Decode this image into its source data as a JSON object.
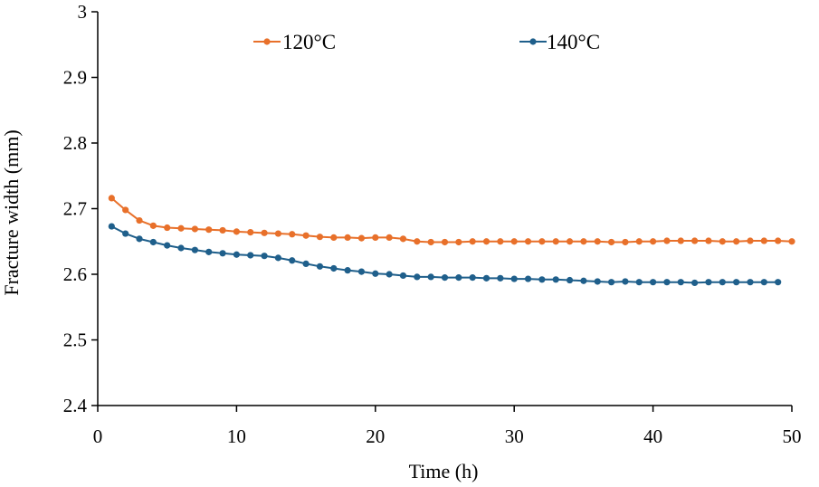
{
  "chart_data": {
    "type": "line",
    "title": "",
    "xlabel": "Time (h)",
    "ylabel": "Fracture width (mm)",
    "xlim": [
      0,
      50
    ],
    "ylim": [
      2.4,
      3
    ],
    "x_ticks": [
      0,
      10,
      20,
      30,
      40,
      50
    ],
    "y_ticks": [
      2.4,
      2.5,
      2.6,
      2.7,
      2.8,
      2.9,
      3
    ],
    "x_tick_labels": [
      "0",
      "10",
      "20",
      "30",
      "40",
      "50"
    ],
    "y_tick_labels": [
      "2.4",
      "2.5",
      "2.6",
      "2.7",
      "2.8",
      "2.9",
      "3"
    ],
    "grid": false,
    "legend_position": "top",
    "series": [
      {
        "name": "120°C",
        "color": "#e8702a",
        "x": [
          1,
          2,
          3,
          4,
          5,
          6,
          7,
          8,
          9,
          10,
          11,
          12,
          13,
          14,
          15,
          16,
          17,
          18,
          19,
          20,
          21,
          22,
          23,
          24,
          25,
          26,
          27,
          28,
          29,
          30,
          31,
          32,
          33,
          34,
          35,
          36,
          37,
          38,
          39,
          40,
          41,
          42,
          43,
          44,
          45,
          46,
          47,
          48,
          49,
          50
        ],
        "values": [
          2.716,
          2.698,
          2.682,
          2.674,
          2.671,
          2.67,
          2.669,
          2.668,
          2.667,
          2.665,
          2.664,
          2.663,
          2.662,
          2.661,
          2.659,
          2.657,
          2.656,
          2.656,
          2.655,
          2.656,
          2.656,
          2.654,
          2.65,
          2.649,
          2.649,
          2.649,
          2.65,
          2.65,
          2.65,
          2.65,
          2.65,
          2.65,
          2.65,
          2.65,
          2.65,
          2.65,
          2.649,
          2.649,
          2.65,
          2.65,
          2.651,
          2.651,
          2.651,
          2.651,
          2.65,
          2.65,
          2.651,
          2.651,
          2.651,
          2.65
        ]
      },
      {
        "name": "140°C",
        "color": "#1f5f8b",
        "x": [
          1,
          2,
          3,
          4,
          5,
          6,
          7,
          8,
          9,
          10,
          11,
          12,
          13,
          14,
          15,
          16,
          17,
          18,
          19,
          20,
          21,
          22,
          23,
          24,
          25,
          26,
          27,
          28,
          29,
          30,
          31,
          32,
          33,
          34,
          35,
          36,
          37,
          38,
          39,
          40,
          41,
          42,
          43,
          44,
          45,
          46,
          47,
          48,
          49
        ],
        "values": [
          2.673,
          2.662,
          2.654,
          2.649,
          2.644,
          2.64,
          2.637,
          2.634,
          2.632,
          2.63,
          2.629,
          2.628,
          2.625,
          2.621,
          2.616,
          2.612,
          2.609,
          2.606,
          2.604,
          2.601,
          2.6,
          2.598,
          2.596,
          2.596,
          2.595,
          2.595,
          2.595,
          2.594,
          2.594,
          2.593,
          2.593,
          2.592,
          2.592,
          2.591,
          2.59,
          2.589,
          2.588,
          2.589,
          2.588,
          2.588,
          2.588,
          2.588,
          2.587,
          2.588,
          2.588,
          2.588,
          2.588,
          2.588,
          2.588
        ]
      }
    ]
  }
}
